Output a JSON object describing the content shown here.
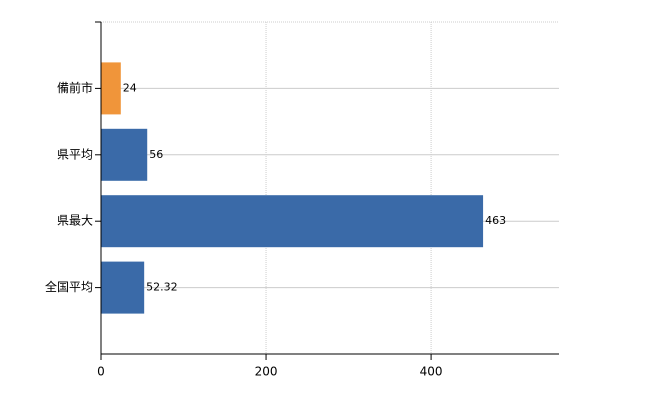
{
  "chart_data": {
    "type": "hbar",
    "categories": [
      "備前市",
      "県平均",
      "県最大",
      "全国平均"
    ],
    "values": [
      24,
      56,
      463,
      52.32
    ],
    "colors": [
      "#f0953a",
      "#3a6aa8",
      "#3a6aa8",
      "#3a6aa8"
    ],
    "xlim": [
      0,
      555
    ],
    "xticks": [
      0,
      200,
      400
    ],
    "grid": true
  }
}
